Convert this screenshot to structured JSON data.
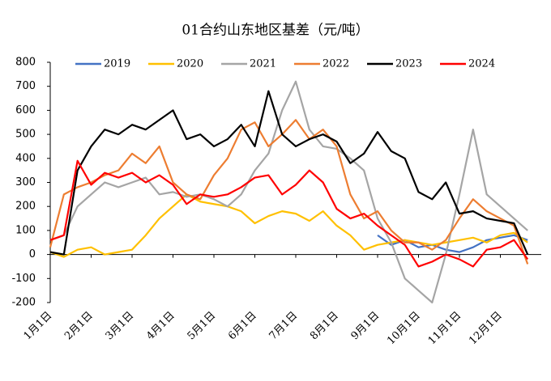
{
  "chart_data": {
    "type": "line",
    "title": "01合约山东地区基差（元/吨）",
    "categories": [
      "1月1日",
      null,
      null,
      "2月1日",
      null,
      null,
      "3月1日",
      null,
      null,
      "4月1日",
      null,
      null,
      "5月1日",
      null,
      null,
      "6月1日",
      null,
      null,
      "7月1日",
      null,
      null,
      "8月1日",
      null,
      null,
      "9月1日",
      null,
      null,
      "10月1日",
      null,
      null,
      "11月1日",
      null,
      null,
      "12月1日",
      null,
      null
    ],
    "series": [
      {
        "name": "2019",
        "color": "#4472c4",
        "values": [
          null,
          null,
          null,
          null,
          null,
          null,
          null,
          null,
          null,
          null,
          null,
          null,
          null,
          null,
          null,
          null,
          null,
          null,
          null,
          null,
          null,
          null,
          null,
          null,
          80,
          40,
          60,
          30,
          40,
          20,
          10,
          30,
          60,
          70,
          80,
          60
        ]
      },
      {
        "name": "2020",
        "color": "#ffc000",
        "values": [
          10,
          -10,
          20,
          30,
          0,
          10,
          20,
          80,
          150,
          200,
          250,
          220,
          210,
          200,
          180,
          130,
          160,
          180,
          170,
          140,
          180,
          120,
          80,
          20,
          40,
          50,
          60,
          50,
          40,
          50,
          60,
          70,
          50,
          80,
          90,
          50
        ]
      },
      {
        "name": "2021",
        "color": "#a5a5a5",
        "values": [
          60,
          80,
          200,
          250,
          300,
          280,
          300,
          320,
          250,
          260,
          240,
          250,
          230,
          200,
          250,
          350,
          420,
          600,
          720,
          520,
          450,
          440,
          400,
          350,
          150,
          50,
          -100,
          -150,
          -200,
          0,
          250,
          520,
          250,
          200,
          150,
          100
        ]
      },
      {
        "name": "2022",
        "color": "#ed7d31",
        "values": [
          30,
          250,
          280,
          300,
          330,
          350,
          420,
          380,
          450,
          300,
          250,
          230,
          330,
          400,
          520,
          550,
          450,
          500,
          560,
          480,
          520,
          450,
          250,
          150,
          180,
          100,
          50,
          50,
          20,
          60,
          150,
          230,
          180,
          150,
          120,
          -40
        ]
      },
      {
        "name": "2023",
        "color": "#000000",
        "values": [
          10,
          0,
          350,
          450,
          520,
          500,
          540,
          520,
          560,
          600,
          480,
          500,
          450,
          480,
          540,
          450,
          680,
          500,
          450,
          480,
          500,
          470,
          380,
          420,
          510,
          430,
          400,
          260,
          230,
          300,
          170,
          180,
          150,
          140,
          130,
          0
        ]
      },
      {
        "name": "2024",
        "color": "#ff0000",
        "values": [
          60,
          80,
          390,
          290,
          340,
          320,
          340,
          300,
          330,
          290,
          210,
          250,
          240,
          250,
          280,
          320,
          330,
          250,
          290,
          350,
          300,
          190,
          150,
          170,
          120,
          80,
          40,
          -50,
          -30,
          0,
          -20,
          -50,
          20,
          30,
          60,
          -20
        ]
      }
    ],
    "ylim": [
      -200,
      800
    ],
    "yticks": [
      -200,
      -100,
      0,
      100,
      200,
      300,
      400,
      500,
      600,
      700,
      800
    ],
    "grid": false,
    "legend": "top"
  }
}
